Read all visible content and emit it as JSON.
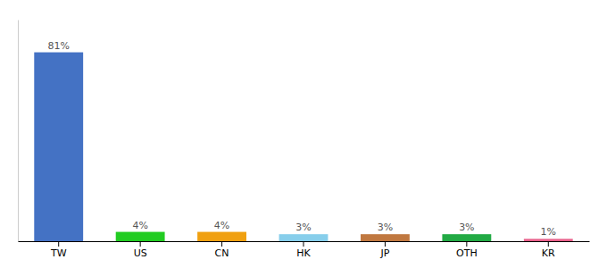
{
  "chart_data": {
    "type": "bar",
    "categories": [
      "TW",
      "US",
      "CN",
      "HK",
      "JP",
      "OTH",
      "KR"
    ],
    "values": [
      81,
      4,
      4,
      3,
      3,
      3,
      1
    ],
    "value_labels": [
      "81%",
      "4%",
      "4%",
      "3%",
      "3%",
      "3%",
      "1%"
    ],
    "colors": [
      "#4472c4",
      "#22cc22",
      "#f0a010",
      "#87ceeb",
      "#c07840",
      "#22aa44",
      "#e8608a"
    ],
    "ylim": [
      0,
      95
    ],
    "data_labels": true,
    "tick_labels": "x",
    "grid": false
  }
}
